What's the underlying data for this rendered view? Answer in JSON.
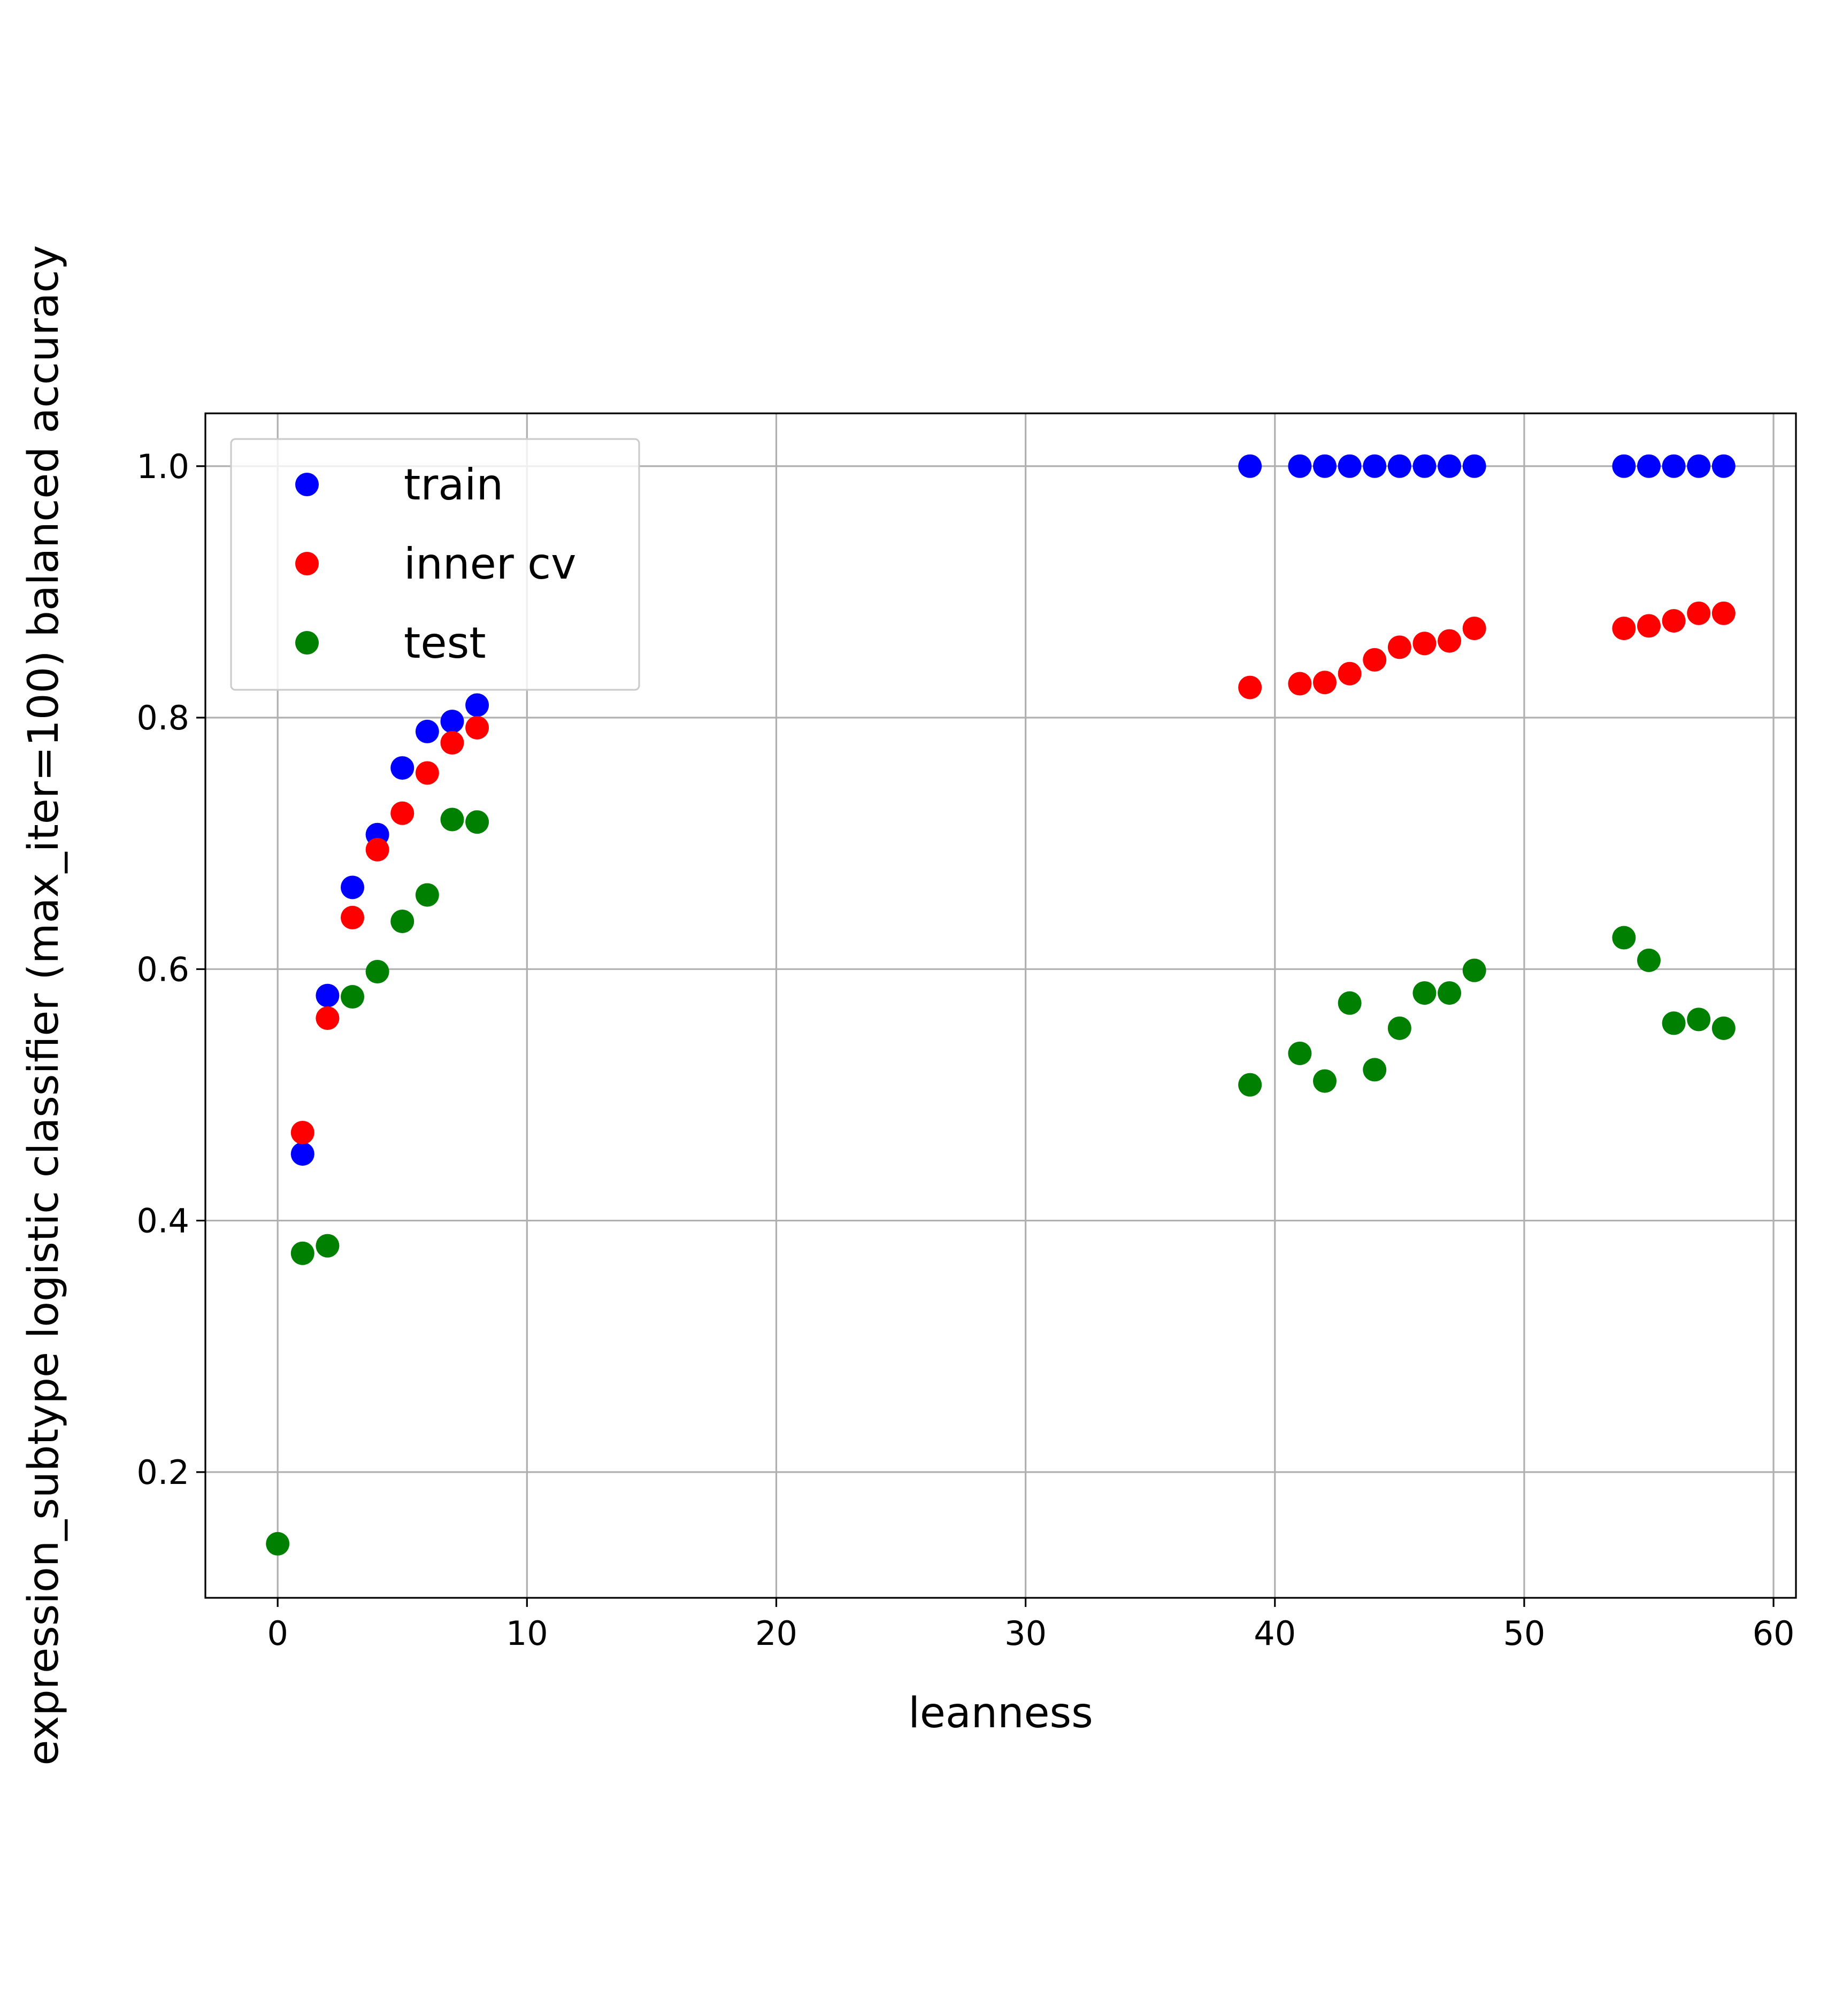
{
  "chart_data": {
    "type": "scatter",
    "xlabel": "leanness",
    "ylabel": "expression_subtype logistic classifier (max_iter=100) balanced accuracy",
    "xlim": [
      -2.9,
      60.9
    ],
    "ylim": [
      0.1,
      1.042
    ],
    "x_ticks": [
      0,
      10,
      20,
      30,
      40,
      50,
      60
    ],
    "x_tick_labels": [
      "0",
      "10",
      "20",
      "30",
      "40",
      "50",
      "60"
    ],
    "y_ticks": [
      0.2,
      0.4,
      0.6,
      0.8,
      1.0
    ],
    "y_tick_labels": [
      "0.2",
      "0.4",
      "0.6",
      "0.8",
      "1.0"
    ],
    "grid": true,
    "legend_position": "top-left",
    "series": [
      {
        "name": "train",
        "color": "#0000ff",
        "points": [
          [
            1,
            0.453
          ],
          [
            2,
            0.579
          ],
          [
            3,
            0.665
          ],
          [
            4,
            0.707
          ],
          [
            5,
            0.76
          ],
          [
            6,
            0.789
          ],
          [
            7,
            0.797
          ],
          [
            8,
            0.81
          ],
          [
            39,
            1.0
          ],
          [
            41,
            1.0
          ],
          [
            42,
            1.0
          ],
          [
            43,
            1.0
          ],
          [
            44,
            1.0
          ],
          [
            45,
            1.0
          ],
          [
            46,
            1.0
          ],
          [
            47,
            1.0
          ],
          [
            48,
            1.0
          ],
          [
            54,
            1.0
          ],
          [
            55,
            1.0
          ],
          [
            56,
            1.0
          ],
          [
            57,
            1.0
          ],
          [
            58,
            1.0
          ]
        ]
      },
      {
        "name": "inner cv",
        "color": "#ff0000",
        "points": [
          [
            1,
            0.47
          ],
          [
            2,
            0.561
          ],
          [
            3,
            0.641
          ],
          [
            4,
            0.695
          ],
          [
            5,
            0.724
          ],
          [
            6,
            0.756
          ],
          [
            7,
            0.78
          ],
          [
            8,
            0.792
          ],
          [
            39,
            0.824
          ],
          [
            41,
            0.827
          ],
          [
            42,
            0.828
          ],
          [
            43,
            0.835
          ],
          [
            44,
            0.846
          ],
          [
            45,
            0.856
          ],
          [
            46,
            0.859
          ],
          [
            47,
            0.861
          ],
          [
            48,
            0.871
          ],
          [
            54,
            0.871
          ],
          [
            55,
            0.873
          ],
          [
            56,
            0.877
          ],
          [
            57,
            0.883
          ],
          [
            58,
            0.883
          ]
        ]
      },
      {
        "name": "test",
        "color": "#008000",
        "points": [
          [
            0,
            0.143
          ],
          [
            1,
            0.374
          ],
          [
            2,
            0.38
          ],
          [
            3,
            0.578
          ],
          [
            4,
            0.598
          ],
          [
            5,
            0.638
          ],
          [
            6,
            0.659
          ],
          [
            7,
            0.719
          ],
          [
            8,
            0.717
          ],
          [
            39,
            0.508
          ],
          [
            41,
            0.533
          ],
          [
            42,
            0.511
          ],
          [
            43,
            0.573
          ],
          [
            44,
            0.52
          ],
          [
            45,
            0.553
          ],
          [
            46,
            0.581
          ],
          [
            47,
            0.581
          ],
          [
            48,
            0.599
          ],
          [
            54,
            0.625
          ],
          [
            55,
            0.607
          ],
          [
            56,
            0.557
          ],
          [
            57,
            0.56
          ],
          [
            58,
            0.553
          ]
        ]
      }
    ]
  }
}
